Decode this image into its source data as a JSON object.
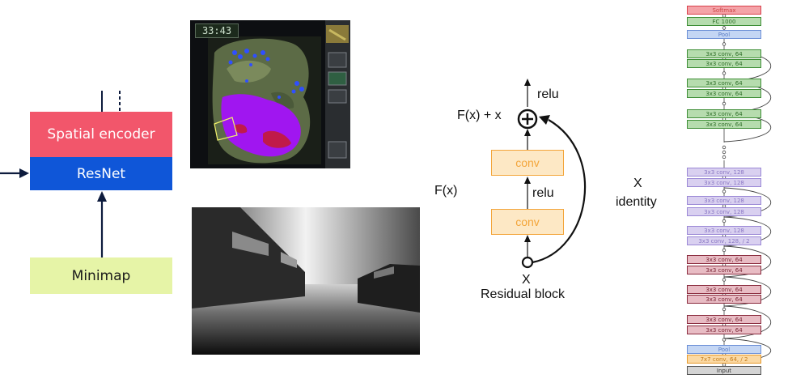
{
  "encoder": {
    "spatial_label": "Spatial encoder",
    "resnet_label": "ResNet",
    "minimap_label": "Minimap",
    "colors": {
      "spatial": "#f2566b",
      "resnet": "#0f56d8",
      "minimap": "#e6f4a7"
    }
  },
  "game": {
    "timer": "33:43"
  },
  "residual": {
    "top_relu": "relu",
    "sum_label": "F(x) + x",
    "conv_top": "conv",
    "conv_bottom": "conv",
    "mid_relu": "relu",
    "fx_label": "F(x)",
    "x_label": "X",
    "title": "Residual block",
    "identity_x": "X",
    "identity_label": "identity",
    "conv_color": "#f3a53a"
  },
  "stack": {
    "top_layers": [
      {
        "label": "Softmax",
        "kind": "red"
      },
      {
        "label": "FC 1000",
        "kind": "green"
      },
      {
        "label": "Pool",
        "kind": "blue"
      },
      {
        "label": "3x3 conv, 64",
        "kind": "green"
      },
      {
        "label": "3x3 conv, 64",
        "kind": "green"
      },
      {
        "label": "3x3 conv, 64",
        "kind": "green"
      },
      {
        "label": "3x3 conv, 64",
        "kind": "green"
      },
      {
        "label": "3x3 conv, 64",
        "kind": "green"
      },
      {
        "label": "3x3 conv, 64",
        "kind": "green"
      }
    ],
    "bottom_layers": [
      {
        "label": "3x3 conv, 128",
        "kind": "purple"
      },
      {
        "label": "3x3 conv, 128",
        "kind": "purple"
      },
      {
        "label": "3x3 conv, 128",
        "kind": "purple"
      },
      {
        "label": "3x3 conv, 128",
        "kind": "purple"
      },
      {
        "label": "3x3 conv, 128",
        "kind": "purple"
      },
      {
        "label": "3x3 conv, 128, / 2",
        "kind": "purple"
      },
      {
        "label": "3x3 conv, 64",
        "kind": "maroon"
      },
      {
        "label": "3x3 conv, 64",
        "kind": "maroon"
      },
      {
        "label": "3x3 conv, 64",
        "kind": "maroon"
      },
      {
        "label": "3x3 conv, 64",
        "kind": "maroon"
      },
      {
        "label": "3x3 conv, 64",
        "kind": "maroon"
      },
      {
        "label": "3x3 conv, 64",
        "kind": "maroon"
      },
      {
        "label": "Pool",
        "kind": "blue"
      },
      {
        "label": "7x7 conv, 64, / 2",
        "kind": "orange"
      },
      {
        "label": "Input",
        "kind": "gray"
      }
    ],
    "colors": {
      "red": {
        "fill": "#f4a3a8",
        "stroke": "#d9404b",
        "text": "#c44"
      },
      "green": {
        "fill": "#b6dcae",
        "stroke": "#3e8e36",
        "text": "#2f6e29"
      },
      "blue": {
        "fill": "#c4d6f4",
        "stroke": "#6b8fd6",
        "text": "#5a7cc4"
      },
      "purple": {
        "fill": "#d9d0f0",
        "stroke": "#9b88d6",
        "text": "#8a78c4"
      },
      "maroon": {
        "fill": "#e8bcc4",
        "stroke": "#8b2c3f",
        "text": "#7a2636"
      },
      "orange": {
        "fill": "#fbd9a4",
        "stroke": "#e79a2c",
        "text": "#c57d1a"
      },
      "gray": {
        "fill": "#d4d4d4",
        "stroke": "#555555",
        "text": "#333333"
      }
    }
  }
}
